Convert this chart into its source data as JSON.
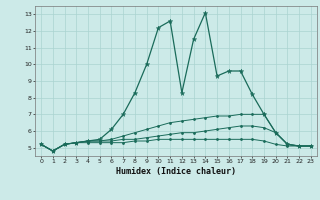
{
  "xlabel": "Humidex (Indice chaleur)",
  "background_color": "#cceae8",
  "grid_color": "#aad4d0",
  "line_color": "#1a6b5a",
  "xlim": [
    -0.5,
    23.5
  ],
  "ylim": [
    4.5,
    13.5
  ],
  "yticks": [
    5,
    6,
    7,
    8,
    9,
    10,
    11,
    12,
    13
  ],
  "xticks": [
    0,
    1,
    2,
    3,
    4,
    5,
    6,
    7,
    8,
    9,
    10,
    11,
    12,
    13,
    14,
    15,
    16,
    17,
    18,
    19,
    20,
    21,
    22,
    23
  ],
  "series": [
    [
      5.2,
      4.8,
      5.2,
      5.3,
      5.4,
      5.5,
      6.1,
      7.0,
      8.3,
      10.0,
      12.2,
      12.6,
      8.3,
      11.5,
      13.1,
      9.3,
      9.6,
      9.6,
      8.2,
      7.0,
      5.9,
      5.2,
      5.1,
      5.1
    ],
    [
      5.2,
      4.8,
      5.2,
      5.3,
      5.4,
      5.4,
      5.5,
      5.7,
      5.9,
      6.1,
      6.3,
      6.5,
      6.6,
      6.7,
      6.8,
      6.9,
      6.9,
      7.0,
      7.0,
      7.0,
      5.9,
      5.2,
      5.1,
      5.1
    ],
    [
      5.2,
      4.8,
      5.2,
      5.3,
      5.4,
      5.4,
      5.4,
      5.5,
      5.5,
      5.6,
      5.7,
      5.8,
      5.9,
      5.9,
      6.0,
      6.1,
      6.2,
      6.3,
      6.3,
      6.2,
      5.9,
      5.2,
      5.1,
      5.1
    ],
    [
      5.2,
      4.8,
      5.2,
      5.3,
      5.3,
      5.3,
      5.3,
      5.3,
      5.4,
      5.4,
      5.5,
      5.5,
      5.5,
      5.5,
      5.5,
      5.5,
      5.5,
      5.5,
      5.5,
      5.4,
      5.2,
      5.1,
      5.1,
      5.1
    ]
  ]
}
